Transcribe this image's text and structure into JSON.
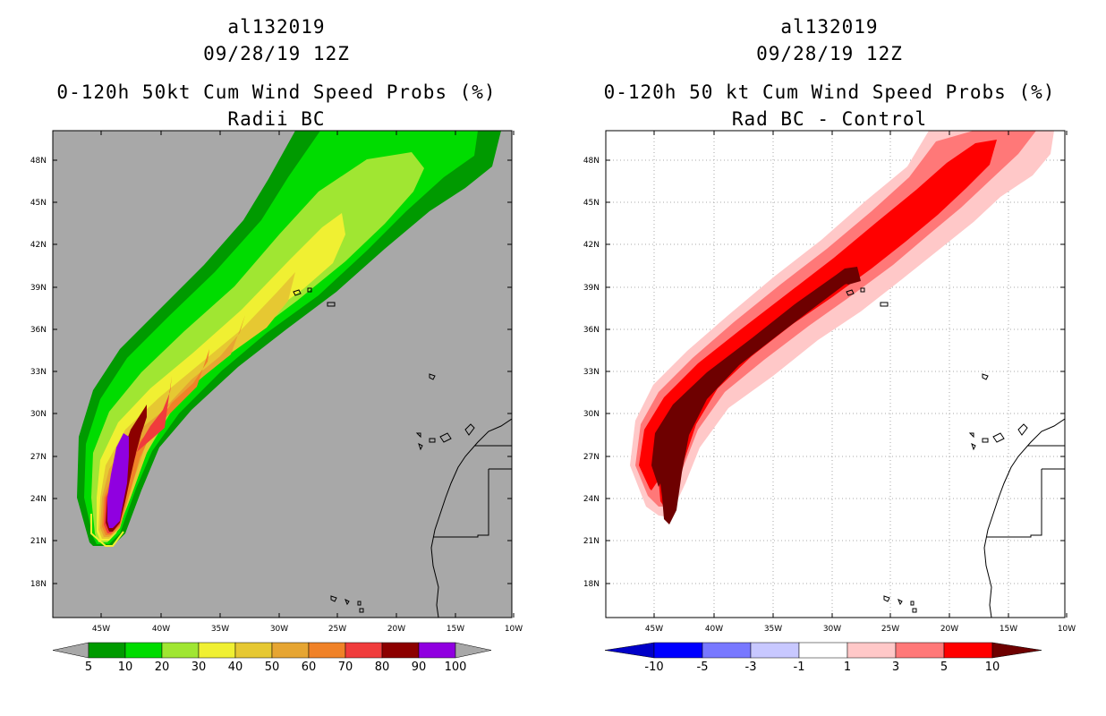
{
  "left_panel": {
    "title_line1": "al132019",
    "title_line2": "09/28/19 12Z",
    "title_line3": "0-120h 50kt Cum Wind Speed Probs (%)",
    "title_line4": "Radii BC",
    "lat_labels": [
      "48N",
      "45N",
      "42N",
      "39N",
      "36N",
      "33N",
      "30N",
      "27N",
      "24N",
      "21N",
      "18N"
    ],
    "lon_labels": [
      "45W",
      "40W",
      "35W",
      "30W",
      "25W",
      "20W",
      "15W",
      "10W"
    ],
    "colorbar": {
      "labels": [
        "5",
        "10",
        "20",
        "30",
        "40",
        "50",
        "60",
        "70",
        "80",
        "90",
        "100"
      ],
      "colors": [
        "#009a00",
        "#00dc00",
        "#a0e632",
        "#f0f032",
        "#e6c832",
        "#e6a532",
        "#f08228",
        "#f03c3c",
        "#8c0000",
        "#9000e0"
      ],
      "end_color": "#a8a8a8"
    },
    "background_color": "#a8a8a8"
  },
  "right_panel": {
    "title_line1": "al132019",
    "title_line2": "09/28/19 12Z",
    "title_line3": "0-120h 50 kt Cum Wind Speed Probs (%)",
    "title_line4": "Rad BC - Control",
    "lat_labels": [
      "48N",
      "45N",
      "42N",
      "39N",
      "36N",
      "33N",
      "30N",
      "27N",
      "24N",
      "21N",
      "18N"
    ],
    "lon_labels": [
      "45W",
      "40W",
      "35W",
      "30W",
      "25W",
      "20W",
      "15W",
      "10W"
    ],
    "colorbar": {
      "labels": [
        "-10",
        "-5",
        "-3",
        "-1",
        "1",
        "3",
        "5",
        "10"
      ],
      "colors": [
        "#0000c8",
        "#0000ff",
        "#7878ff",
        "#c8c8ff",
        "#ffffff",
        "#ffc8c8",
        "#ff7878",
        "#ff0000",
        "#6e0000"
      ]
    },
    "background_color": "#ffffff"
  }
}
